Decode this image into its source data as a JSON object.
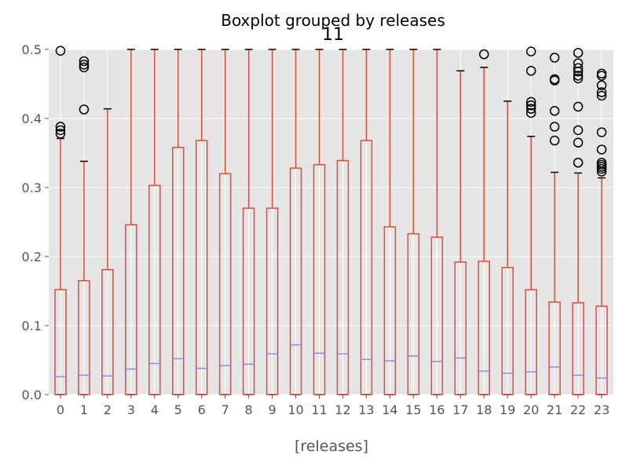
{
  "chart_data": {
    "type": "boxplot",
    "suptitle": "Boxplot grouped by releases",
    "title": "11",
    "xlabel": "[releases]",
    "ylabel": "",
    "ylim": [
      0,
      0.5
    ],
    "grid": true,
    "colors": {
      "background": "#e5e5e5",
      "grid": "#ffffff",
      "box": "#e24a33",
      "median": "#8c8cf0",
      "flier": "#000000"
    },
    "yticks": [
      "0.0",
      "0.1",
      "0.2",
      "0.3",
      "0.4",
      "0.5"
    ],
    "categories": [
      "0",
      "1",
      "2",
      "3",
      "4",
      "5",
      "6",
      "7",
      "8",
      "9",
      "10",
      "11",
      "12",
      "13",
      "14",
      "15",
      "16",
      "17",
      "18",
      "19",
      "20",
      "21",
      "22",
      "23"
    ],
    "boxes": [
      {
        "q1": 0.0,
        "median": 0.026,
        "q3": 0.152,
        "whislo": 0.0,
        "whishi": 0.371,
        "fliers": [
          0.378,
          0.383,
          0.388,
          0.498
        ]
      },
      {
        "q1": 0.0,
        "median": 0.028,
        "q3": 0.165,
        "whislo": 0.0,
        "whishi": 0.338,
        "fliers": [
          0.413,
          0.474,
          0.478,
          0.483
        ]
      },
      {
        "q1": 0.0,
        "median": 0.027,
        "q3": 0.181,
        "whislo": 0.0,
        "whishi": 0.414,
        "fliers": []
      },
      {
        "q1": 0.0,
        "median": 0.037,
        "q3": 0.246,
        "whislo": 0.0,
        "whishi": 0.5,
        "fliers": []
      },
      {
        "q1": 0.0,
        "median": 0.045,
        "q3": 0.303,
        "whislo": 0.0,
        "whishi": 0.5,
        "fliers": []
      },
      {
        "q1": 0.0,
        "median": 0.052,
        "q3": 0.358,
        "whislo": 0.0,
        "whishi": 0.5,
        "fliers": []
      },
      {
        "q1": 0.0,
        "median": 0.038,
        "q3": 0.368,
        "whislo": 0.0,
        "whishi": 0.5,
        "fliers": []
      },
      {
        "q1": 0.0,
        "median": 0.042,
        "q3": 0.32,
        "whislo": 0.0,
        "whishi": 0.5,
        "fliers": []
      },
      {
        "q1": 0.0,
        "median": 0.044,
        "q3": 0.27,
        "whislo": 0.0,
        "whishi": 0.5,
        "fliers": []
      },
      {
        "q1": 0.0,
        "median": 0.059,
        "q3": 0.27,
        "whislo": 0.0,
        "whishi": 0.5,
        "fliers": []
      },
      {
        "q1": 0.0,
        "median": 0.072,
        "q3": 0.328,
        "whislo": 0.0,
        "whishi": 0.5,
        "fliers": []
      },
      {
        "q1": 0.0,
        "median": 0.06,
        "q3": 0.333,
        "whislo": 0.0,
        "whishi": 0.5,
        "fliers": []
      },
      {
        "q1": 0.0,
        "median": 0.059,
        "q3": 0.339,
        "whislo": 0.0,
        "whishi": 0.5,
        "fliers": []
      },
      {
        "q1": 0.0,
        "median": 0.051,
        "q3": 0.368,
        "whislo": 0.0,
        "whishi": 0.5,
        "fliers": []
      },
      {
        "q1": 0.0,
        "median": 0.049,
        "q3": 0.243,
        "whislo": 0.0,
        "whishi": 0.5,
        "fliers": []
      },
      {
        "q1": 0.0,
        "median": 0.056,
        "q3": 0.233,
        "whislo": 0.0,
        "whishi": 0.5,
        "fliers": []
      },
      {
        "q1": 0.0,
        "median": 0.048,
        "q3": 0.228,
        "whislo": 0.0,
        "whishi": 0.5,
        "fliers": []
      },
      {
        "q1": 0.0,
        "median": 0.053,
        "q3": 0.192,
        "whislo": 0.0,
        "whishi": 0.469,
        "fliers": []
      },
      {
        "q1": 0.0,
        "median": 0.034,
        "q3": 0.193,
        "whislo": 0.0,
        "whishi": 0.474,
        "fliers": [
          0.493
        ]
      },
      {
        "q1": 0.0,
        "median": 0.031,
        "q3": 0.184,
        "whislo": 0.0,
        "whishi": 0.425,
        "fliers": []
      },
      {
        "q1": 0.0,
        "median": 0.033,
        "q3": 0.152,
        "whislo": 0.0,
        "whishi": 0.374,
        "fliers": [
          0.408,
          0.414,
          0.419,
          0.424,
          0.469,
          0.497
        ]
      },
      {
        "q1": 0.0,
        "median": 0.04,
        "q3": 0.134,
        "whislo": 0.0,
        "whishi": 0.322,
        "fliers": [
          0.368,
          0.388,
          0.411,
          0.455,
          0.457,
          0.488
        ]
      },
      {
        "q1": 0.0,
        "median": 0.028,
        "q3": 0.133,
        "whislo": 0.0,
        "whishi": 0.321,
        "fliers": [
          0.336,
          0.365,
          0.383,
          0.417,
          0.458,
          0.462,
          0.468,
          0.473,
          0.48,
          0.495
        ]
      },
      {
        "q1": 0.0,
        "median": 0.024,
        "q3": 0.128,
        "whislo": 0.0,
        "whishi": 0.314,
        "fliers": [
          0.323,
          0.327,
          0.33,
          0.333,
          0.336,
          0.355,
          0.38,
          0.433,
          0.438,
          0.448,
          0.462,
          0.465
        ]
      }
    ]
  }
}
